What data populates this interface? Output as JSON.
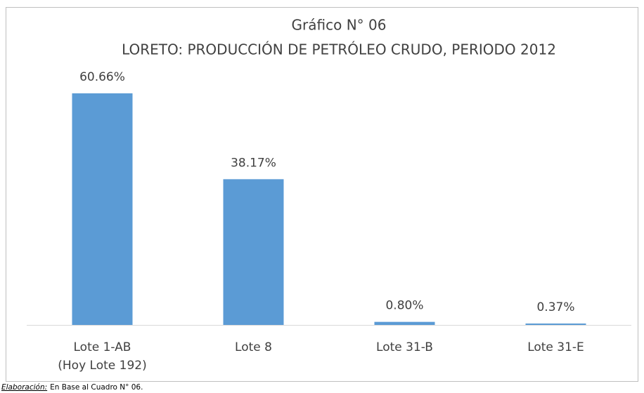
{
  "chart_data": {
    "type": "bar",
    "title": "Gráfico N° 06",
    "subtitle": "LORETO: PRODUCCIÓN DE PETRÓLEO CRUDO, PERIODO 2012",
    "categories": [
      "Lote 1-AB\n(Hoy Lote 192)",
      "Lote 8",
      "Lote 31-B",
      "Lote 31-E"
    ],
    "values": [
      60.66,
      38.17,
      0.8,
      0.37
    ],
    "value_labels": [
      "60.66%",
      "38.17%",
      "0.80%",
      "0.37%"
    ],
    "color": "#5b9bd5",
    "source": {
      "label": "Elaboración:",
      "text": "En Base al Cuadro N° 06."
    }
  }
}
